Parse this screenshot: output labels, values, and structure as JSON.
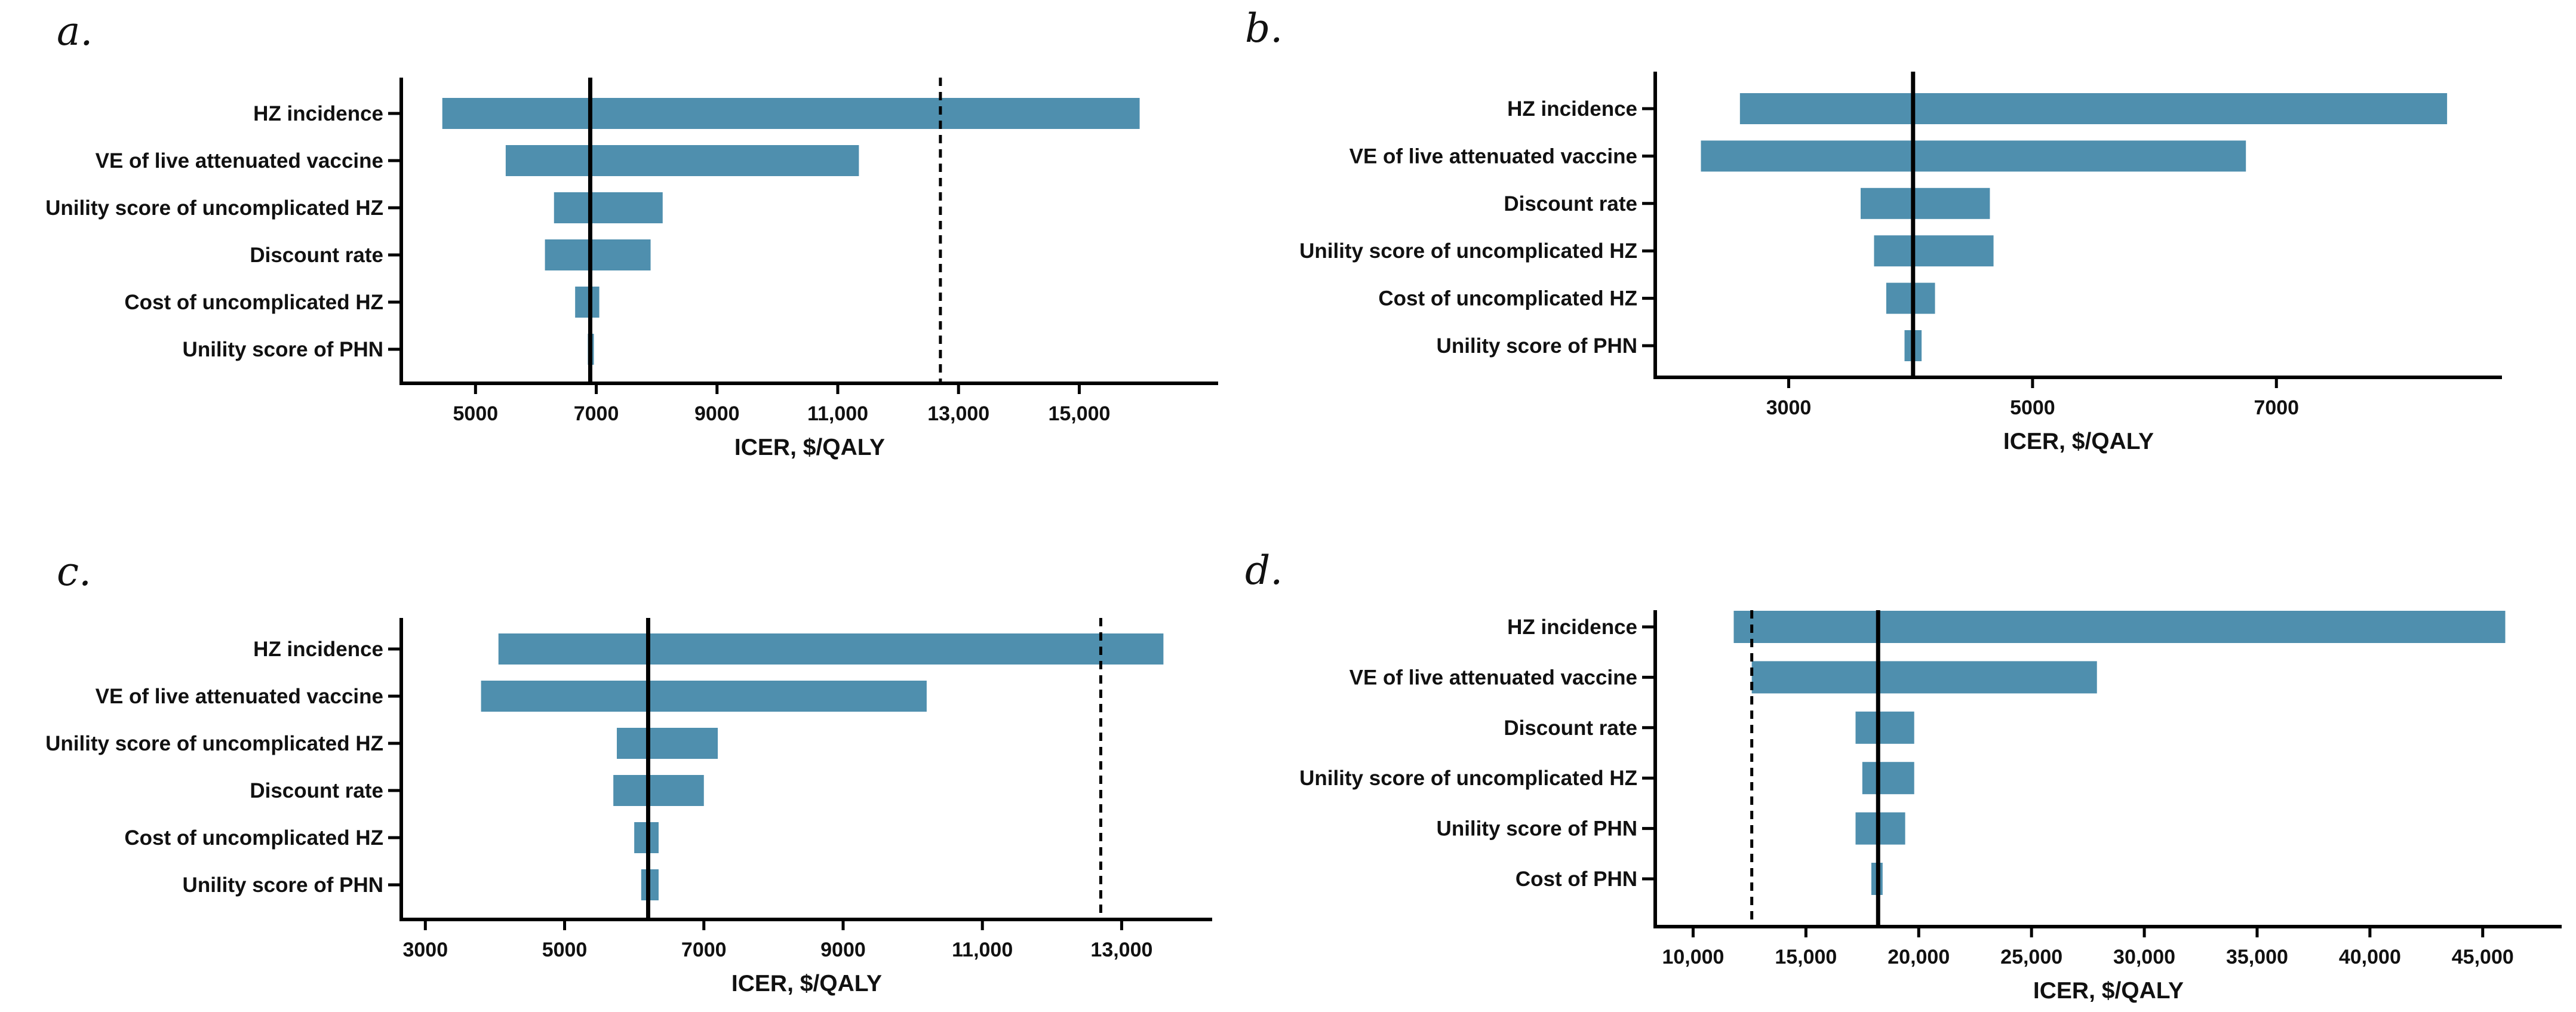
{
  "chart_data": [
    {
      "panel": "a.",
      "type": "bar",
      "orientation": "horizontal",
      "subtype": "tornado",
      "xlabel": "ICER,  $/QALY",
      "xlim": [
        3800,
        17300
      ],
      "xticks": [
        5000,
        7000,
        9000,
        11000,
        13000,
        15000
      ],
      "xtick_labels": [
        "5000",
        "7000",
        "9000",
        "11,000",
        "13,000",
        "15,000"
      ],
      "base_case": 6900,
      "threshold_dashed": 12700,
      "categories": [
        "HZ incidence",
        "VE of live attenuated vaccine",
        "Unility score of uncomplicated HZ",
        "Discount rate",
        "Cost of uncomplicated HZ",
        "Unility score of PHN"
      ],
      "low": [
        4450,
        5500,
        6300,
        6150,
        6650,
        6860
      ],
      "high": [
        16000,
        11350,
        8100,
        7900,
        7050,
        6960
      ]
    },
    {
      "panel": "b.",
      "type": "bar",
      "orientation": "horizontal",
      "subtype": "tornado",
      "xlabel": "ICER,  $/QALY",
      "xlim": [
        1920,
        8850
      ],
      "xticks": [
        3000,
        5000,
        7000
      ],
      "xtick_labels": [
        "3000",
        "5000",
        "7000"
      ],
      "base_case": 4020,
      "categories": [
        "HZ incidence",
        "VE of live attenuated vaccine",
        "Discount rate",
        "Unility score of uncomplicated HZ",
        "Cost of uncomplicated HZ",
        "Unility score of PHN"
      ],
      "low": [
        2600,
        2280,
        3590,
        3700,
        3800,
        3950
      ],
      "high": [
        8400,
        6750,
        4650,
        4680,
        4200,
        4090
      ]
    },
    {
      "panel": "c.",
      "type": "bar",
      "orientation": "horizontal",
      "subtype": "tornado",
      "xlabel": "ICER,  $/QALY",
      "xlim": [
        2680,
        14300
      ],
      "xticks": [
        3000,
        5000,
        7000,
        9000,
        11000,
        13000
      ],
      "xtick_labels": [
        "3000",
        "5000",
        "7000",
        "9000",
        "11,000",
        "13,000"
      ],
      "base_case": 6200,
      "threshold_dashed": 12700,
      "categories": [
        "HZ incidence",
        "VE of live attenuated vaccine",
        "Unility score of uncomplicated HZ",
        "Discount rate",
        "Cost of uncomplicated HZ",
        "Unility score of PHN"
      ],
      "low": [
        4050,
        3800,
        5750,
        5700,
        6000,
        6100
      ],
      "high": [
        13600,
        10200,
        7200,
        7000,
        6350,
        6350
      ]
    },
    {
      "panel": "d.",
      "type": "bar",
      "orientation": "horizontal",
      "subtype": "tornado",
      "xlabel": "ICER,  $/QALY",
      "xlim": [
        8400,
        48500
      ],
      "xticks": [
        10000,
        15000,
        20000,
        25000,
        30000,
        35000,
        40000,
        45000
      ],
      "xtick_labels": [
        "10,000",
        "15,000",
        "20,000",
        "25,000",
        "30,000",
        "35,000",
        "40,000",
        "45,000"
      ],
      "base_case": 18200,
      "threshold_dashed": 12600,
      "categories": [
        "HZ incidence",
        "VE of live attenuated vaccine",
        "Discount rate",
        "Unility score of uncomplicated HZ",
        "Unility score of PHN",
        "Cost of PHN"
      ],
      "low": [
        11800,
        12600,
        17200,
        17500,
        17200,
        17900
      ],
      "high": [
        46000,
        27900,
        19800,
        19800,
        19400,
        18400
      ]
    }
  ]
}
